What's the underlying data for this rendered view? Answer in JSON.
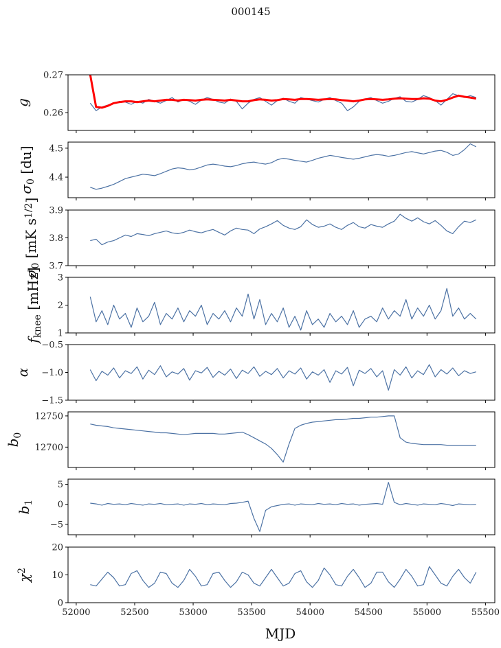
{
  "chart_data": {
    "type": "line",
    "title": "000145",
    "xlabel": "MJD",
    "xlim": [
      51930,
      55580
    ],
    "xticks": [
      52000,
      52500,
      53000,
      53500,
      54000,
      54500,
      55000,
      55500
    ],
    "x_start": 52120,
    "x_step": 50,
    "line_color": "#4c72a4",
    "fit_color": "#ff0000",
    "panels": [
      {
        "label": [
          {
            "t": "g",
            "s": "i"
          }
        ],
        "ylim": [
          0.2553,
          0.27
        ],
        "yticks": [
          0.26,
          0.27
        ],
        "ytick_labels": [
          "0.26",
          "0.27"
        ],
        "series": [
          {
            "name": "g",
            "values": [
              0.2625,
              0.2605,
              0.2615,
              0.262,
              0.2625,
              0.263,
              0.2628,
              0.2622,
              0.263,
              0.2625,
              0.2635,
              0.263,
              0.2625,
              0.2632,
              0.264,
              0.2628,
              0.2635,
              0.263,
              0.2622,
              0.2633,
              0.264,
              0.2635,
              0.2628,
              0.2625,
              0.2636,
              0.263,
              0.261,
              0.2625,
              0.2635,
              0.264,
              0.263,
              0.262,
              0.2632,
              0.2638,
              0.263,
              0.2625,
              0.264,
              0.2636,
              0.2632,
              0.2628,
              0.2635,
              0.264,
              0.2632,
              0.2625,
              0.2605,
              0.2615,
              0.263,
              0.2636,
              0.264,
              0.2632,
              0.2625,
              0.263,
              0.2638,
              0.2642,
              0.263,
              0.2628,
              0.2635,
              0.2645,
              0.264,
              0.2632,
              0.262,
              0.2635,
              0.265,
              0.2645,
              0.264,
              0.2645,
              0.264
            ]
          },
          {
            "name": "g fit",
            "fit": true,
            "values": [
              0.27,
              0.2615,
              0.2613,
              0.2618,
              0.2625,
              0.2628,
              0.263,
              0.263,
              0.2628,
              0.263,
              0.2632,
              0.263,
              0.2632,
              0.2634,
              0.2634,
              0.2632,
              0.2634,
              0.2633,
              0.2632,
              0.2634,
              0.2635,
              0.2634,
              0.2633,
              0.2632,
              0.2634,
              0.2632,
              0.263,
              0.263,
              0.2633,
              0.2635,
              0.2634,
              0.2632,
              0.2633,
              0.2636,
              0.2635,
              0.2634,
              0.2636,
              0.2636,
              0.2635,
              0.2634,
              0.2635,
              0.2636,
              0.2635,
              0.2633,
              0.2632,
              0.263,
              0.2632,
              0.2635,
              0.2636,
              0.2635,
              0.2634,
              0.2635,
              0.2637,
              0.2638,
              0.2637,
              0.2636,
              0.2636,
              0.2638,
              0.2637,
              0.2632,
              0.263,
              0.2634,
              0.264,
              0.2645,
              0.2642,
              0.264,
              0.2637
            ]
          }
        ]
      },
      {
        "label": [
          {
            "t": "σ",
            "s": "i"
          },
          {
            "t": "0",
            "s": "sub"
          },
          {
            "t": " [du]",
            "s": ""
          }
        ],
        "ylim": [
          4.329,
          4.521
        ],
        "yticks": [
          4.4,
          4.5
        ],
        "ytick_labels": [
          "4.4",
          "4.5"
        ],
        "series": [
          {
            "name": "sigma0_du",
            "values": [
              4.365,
              4.358,
              4.362,
              4.368,
              4.375,
              4.385,
              4.395,
              4.4,
              4.405,
              4.41,
              4.408,
              4.405,
              4.412,
              4.42,
              4.428,
              4.432,
              4.43,
              4.425,
              4.428,
              4.435,
              4.442,
              4.445,
              4.442,
              4.438,
              4.436,
              4.44,
              4.446,
              4.45,
              4.452,
              4.448,
              4.445,
              4.45,
              4.46,
              4.465,
              4.462,
              4.458,
              4.455,
              4.452,
              4.458,
              4.465,
              4.47,
              4.475,
              4.472,
              4.468,
              4.465,
              4.462,
              4.465,
              4.47,
              4.475,
              4.478,
              4.476,
              4.472,
              4.475,
              4.48,
              4.485,
              4.488,
              4.484,
              4.48,
              4.485,
              4.49,
              4.492,
              4.486,
              4.475,
              4.48,
              4.495,
              4.515,
              4.505
            ]
          }
        ]
      },
      {
        "label": [
          {
            "t": "σ",
            "s": "i"
          },
          {
            "t": "0",
            "s": "sub"
          },
          {
            "t": " [mK s",
            "s": ""
          },
          {
            "t": "1/2",
            "s": "sup"
          },
          {
            "t": "]",
            "s": ""
          }
        ],
        "ylim": [
          3.7,
          3.9
        ],
        "yticks": [
          3.7,
          3.8,
          3.9
        ],
        "ytick_labels": [
          "3.7",
          "3.8",
          "3.9"
        ],
        "series": [
          {
            "name": "sigma0_mK",
            "values": [
              3.79,
              3.795,
              3.775,
              3.785,
              3.79,
              3.8,
              3.81,
              3.805,
              3.815,
              3.812,
              3.808,
              3.815,
              3.82,
              3.825,
              3.818,
              3.815,
              3.82,
              3.828,
              3.822,
              3.818,
              3.825,
              3.83,
              3.82,
              3.81,
              3.825,
              3.835,
              3.83,
              3.828,
              3.815,
              3.832,
              3.84,
              3.85,
              3.862,
              3.845,
              3.835,
              3.83,
              3.84,
              3.865,
              3.848,
              3.838,
              3.842,
              3.85,
              3.838,
              3.83,
              3.845,
              3.855,
              3.84,
              3.835,
              3.848,
              3.842,
              3.838,
              3.85,
              3.86,
              3.885,
              3.87,
              3.86,
              3.872,
              3.858,
              3.85,
              3.862,
              3.845,
              3.825,
              3.815,
              3.84,
              3.86,
              3.855,
              3.865
            ]
          }
        ]
      },
      {
        "label": [
          {
            "t": "f",
            "s": "i"
          },
          {
            "t": "knee",
            "s": "sub"
          },
          {
            "t": " [mHz]",
            "s": ""
          }
        ],
        "ylim": [
          1,
          3
        ],
        "yticks": [
          1,
          2,
          3
        ],
        "ytick_labels": [
          "1",
          "2",
          "3"
        ],
        "series": [
          {
            "name": "fknee",
            "values": [
              2.3,
              1.4,
              1.8,
              1.3,
              2.0,
              1.5,
              1.7,
              1.2,
              1.9,
              1.4,
              1.6,
              2.1,
              1.3,
              1.7,
              1.5,
              1.9,
              1.4,
              1.8,
              1.6,
              2.0,
              1.3,
              1.7,
              1.5,
              1.8,
              1.4,
              1.9,
              1.6,
              2.4,
              1.5,
              2.2,
              1.3,
              1.7,
              1.4,
              1.9,
              1.2,
              1.6,
              1.1,
              1.8,
              1.3,
              1.5,
              1.2,
              1.7,
              1.4,
              1.6,
              1.3,
              1.8,
              1.2,
              1.5,
              1.6,
              1.4,
              1.9,
              1.5,
              1.8,
              1.6,
              2.2,
              1.5,
              1.9,
              1.6,
              2.0,
              1.5,
              1.8,
              2.6,
              1.6,
              1.9,
              1.5,
              1.7,
              1.5
            ]
          }
        ]
      },
      {
        "label": [
          {
            "t": "α",
            "s": "i"
          }
        ],
        "ylim": [
          -1.5,
          -0.5
        ],
        "yticks": [
          -1.5,
          -1.0,
          -0.5
        ],
        "ytick_labels": [
          "−1.5",
          "−1.0",
          "−0.5"
        ],
        "series": [
          {
            "name": "alpha",
            "values": [
              -0.95,
              -1.15,
              -0.98,
              -1.05,
              -0.92,
              -1.1,
              -0.97,
              -1.02,
              -0.9,
              -1.12,
              -0.96,
              -1.04,
              -0.88,
              -1.08,
              -0.99,
              -1.03,
              -0.93,
              -1.14,
              -0.97,
              -1.01,
              -0.91,
              -1.09,
              -0.98,
              -1.05,
              -0.94,
              -1.11,
              -0.96,
              -1.02,
              -0.9,
              -1.07,
              -0.98,
              -1.04,
              -0.93,
              -1.1,
              -0.97,
              -1.03,
              -0.92,
              -1.12,
              -0.99,
              -1.05,
              -0.95,
              -1.18,
              -0.97,
              -1.03,
              -0.91,
              -1.24,
              -0.96,
              -1.02,
              -0.93,
              -1.08,
              -0.97,
              -1.32,
              -0.95,
              -1.05,
              -0.9,
              -1.1,
              -0.97,
              -1.04,
              -0.86,
              -1.08,
              -0.95,
              -1.03,
              -0.92,
              -1.06,
              -0.97,
              -1.02,
              -0.99
            ]
          }
        ]
      },
      {
        "label": [
          {
            "t": "b",
            "s": "i"
          },
          {
            "t": "0",
            "s": "sub"
          }
        ],
        "ylim": [
          12667.4,
          12756.5
        ],
        "yticks": [
          12700,
          12750
        ],
        "ytick_labels": [
          "12700",
          "12750"
        ],
        "series": [
          {
            "name": "b0",
            "values": [
              12737,
              12735,
              12734,
              12733,
              12731,
              12730,
              12729,
              12728,
              12727,
              12726,
              12725,
              12724,
              12723,
              12723,
              12722,
              12721,
              12720,
              12721,
              12722,
              12722,
              12722,
              12722,
              12721,
              12721,
              12722,
              12723,
              12724,
              12720,
              12715,
              12710,
              12705,
              12698,
              12688,
              12676,
              12705,
              12730,
              12735,
              12738,
              12740,
              12741,
              12742,
              12743,
              12744,
              12744,
              12745,
              12746,
              12746,
              12747,
              12748,
              12748,
              12749,
              12750,
              12750,
              12715,
              12708,
              12706,
              12705,
              12704,
              12704,
              12704,
              12704,
              12703,
              12703,
              12703,
              12703,
              12703,
              12703
            ]
          }
        ]
      },
      {
        "label": [
          {
            "t": "b",
            "s": "i"
          },
          {
            "t": "1",
            "s": "sub"
          }
        ],
        "ylim": [
          -7.6,
          6.3
        ],
        "yticks": [
          -5,
          0,
          5
        ],
        "ytick_labels": [
          "−5",
          "0",
          "5"
        ],
        "series": [
          {
            "name": "b1",
            "values": [
              0.3,
              0.1,
              -0.2,
              0.2,
              0.0,
              0.1,
              -0.1,
              0.2,
              0.0,
              -0.2,
              0.1,
              0.0,
              0.2,
              -0.1,
              0.0,
              0.1,
              -0.2,
              0.1,
              0.0,
              0.2,
              -0.1,
              0.1,
              0.0,
              -0.1,
              0.2,
              0.3,
              0.5,
              0.8,
              -3.5,
              -6.8,
              -1.5,
              -0.6,
              -0.3,
              0.0,
              0.1,
              -0.2,
              0.1,
              0.0,
              -0.1,
              0.2,
              0.0,
              0.1,
              -0.1,
              0.2,
              0.0,
              0.1,
              -0.2,
              0.0,
              0.1,
              0.2,
              0.0,
              5.5,
              0.5,
              -0.1,
              0.2,
              0.0,
              -0.2,
              0.1,
              0.0,
              -0.1,
              0.2,
              0.0,
              -0.3,
              0.1,
              0.0,
              -0.1,
              0.0
            ]
          }
        ]
      },
      {
        "label": [
          {
            "t": "χ",
            "s": "i"
          },
          {
            "t": "2",
            "s": "sup"
          }
        ],
        "ylim": [
          0,
          20
        ],
        "yticks": [
          0,
          10,
          20
        ],
        "ytick_labels": [
          "0",
          "10",
          "20"
        ],
        "series": [
          {
            "name": "chi2",
            "values": [
              6.5,
              6.0,
              8.5,
              11.0,
              9.0,
              6.0,
              6.5,
              10.5,
              11.5,
              8.0,
              5.5,
              7.0,
              11.0,
              10.5,
              7.0,
              5.5,
              8.0,
              12.0,
              9.5,
              6.0,
              6.5,
              10.5,
              11.0,
              8.0,
              5.5,
              7.5,
              11.0,
              10.0,
              7.0,
              6.0,
              9.0,
              12.0,
              9.0,
              6.0,
              7.0,
              10.5,
              11.5,
              7.5,
              5.5,
              8.0,
              12.5,
              10.0,
              6.5,
              6.0,
              9.5,
              12.0,
              9.0,
              5.5,
              7.0,
              11.0,
              11.0,
              7.5,
              5.5,
              8.5,
              12.0,
              9.5,
              6.0,
              6.5,
              13.0,
              10.0,
              7.0,
              6.0,
              9.5,
              12.0,
              9.0,
              7.0,
              11.0
            ]
          }
        ]
      }
    ]
  }
}
